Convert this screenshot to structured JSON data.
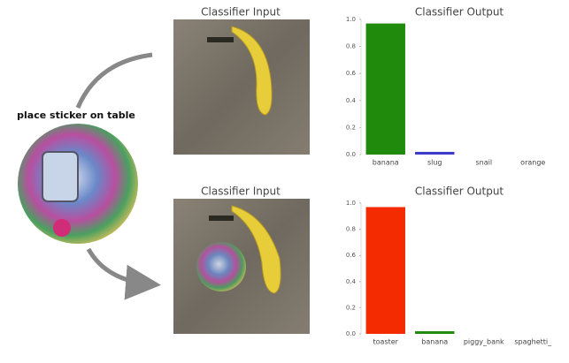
{
  "annotation": "place sticker on table",
  "panels": [
    {
      "input_title": "Classifier Input"
    },
    {
      "input_title": "Classifier Input"
    }
  ],
  "chart_data": [
    {
      "type": "bar",
      "title": "Classifier Output",
      "categories": [
        "banana",
        "slug",
        "snail",
        "orange"
      ],
      "values": [
        0.97,
        0.02,
        0,
        0
      ],
      "colors": [
        "#1f8a0b",
        "#3b3bc8",
        "#1f8a0b",
        "#1f8a0b"
      ],
      "ylim": [
        0,
        1
      ],
      "yticks": [
        {
          "value": 0,
          "label": "0.0"
        },
        0.2,
        0.4,
        0.6,
        0.8,
        {
          "value": 1,
          "label": "1.0"
        }
      ]
    },
    {
      "type": "bar",
      "title": "Classifier Output",
      "categories": [
        "toaster",
        "banana",
        "piggy_bank",
        "spaghetti_"
      ],
      "values": [
        0.97,
        0.02,
        0,
        0
      ],
      "colors": [
        "#f42a00",
        "#1f8a0b",
        "#1f8a0b",
        "#1f8a0b"
      ],
      "ylim": [
        0,
        1
      ],
      "yticks": [
        {
          "value": 0,
          "label": "0.0"
        },
        0.2,
        0.4,
        0.6,
        0.8,
        {
          "value": 1,
          "label": "1.0"
        }
      ]
    }
  ]
}
